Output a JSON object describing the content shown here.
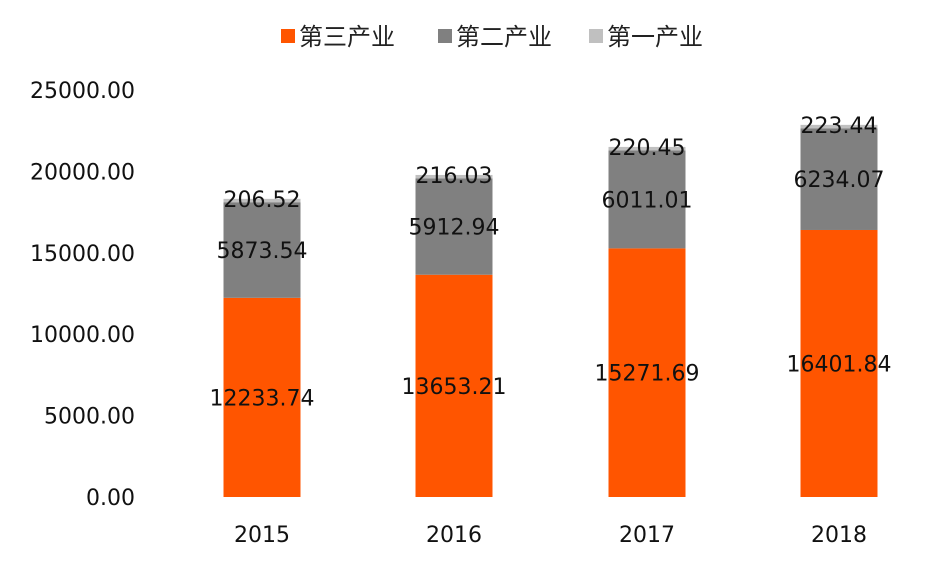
{
  "chart_data": {
    "type": "bar",
    "stacked": true,
    "categories": [
      "2015",
      "2016",
      "2017",
      "2018"
    ],
    "series": [
      {
        "name": "第三产业",
        "color": "#ff5500",
        "values": [
          12233.74,
          13653.21,
          15271.69,
          16401.84
        ]
      },
      {
        "name": "第二产业",
        "color": "#808080",
        "values": [
          5873.54,
          5912.94,
          6011.01,
          6234.07
        ]
      },
      {
        "name": "第一产业",
        "color": "#c0c0c0",
        "values": [
          206.52,
          216.03,
          220.45,
          223.44
        ]
      }
    ],
    "value_labels": [
      [
        "12233.74",
        "13653.21",
        "15271.69",
        "16401.84"
      ],
      [
        "5873.54",
        "5912.94",
        "6011.01",
        "6234.07"
      ],
      [
        "206.52",
        "216.03",
        "220.45",
        "223.44"
      ]
    ],
    "y_ticks": [
      "0.00",
      "5000.00",
      "10000.00",
      "15000.00",
      "20000.00",
      "25000.00"
    ],
    "ylim": [
      0,
      25000
    ],
    "legend_position": "top",
    "grid": false
  }
}
